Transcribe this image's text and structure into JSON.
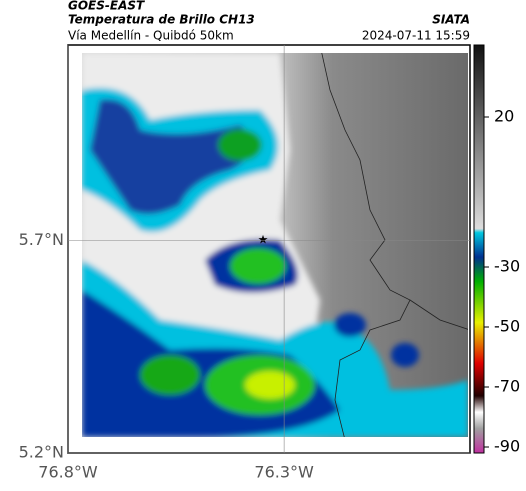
{
  "header": {
    "source": "GOES-EAST",
    "title": "Temperatura de Brillo CH13",
    "subtitle": "Vía Medellín - Quibdó 50km",
    "brand": "SIATA",
    "datetime": "2024-07-11 15:59"
  },
  "map": {
    "xlim": [
      -76.8,
      -75.87
    ],
    "ylim": [
      5.2,
      6.16
    ],
    "xticks": [
      {
        "value": -76.8,
        "label": "76.8°W"
      },
      {
        "value": -76.3,
        "label": "76.3°W"
      }
    ],
    "yticks": [
      {
        "value": 5.7,
        "label": "5.7°N"
      },
      {
        "value": 5.2,
        "label": "5.2°N"
      }
    ],
    "grid": true
  },
  "colorbar": {
    "lim": [
      -92,
      44
    ],
    "ticks": [
      20,
      -30,
      -50,
      -70,
      -90
    ]
  }
}
